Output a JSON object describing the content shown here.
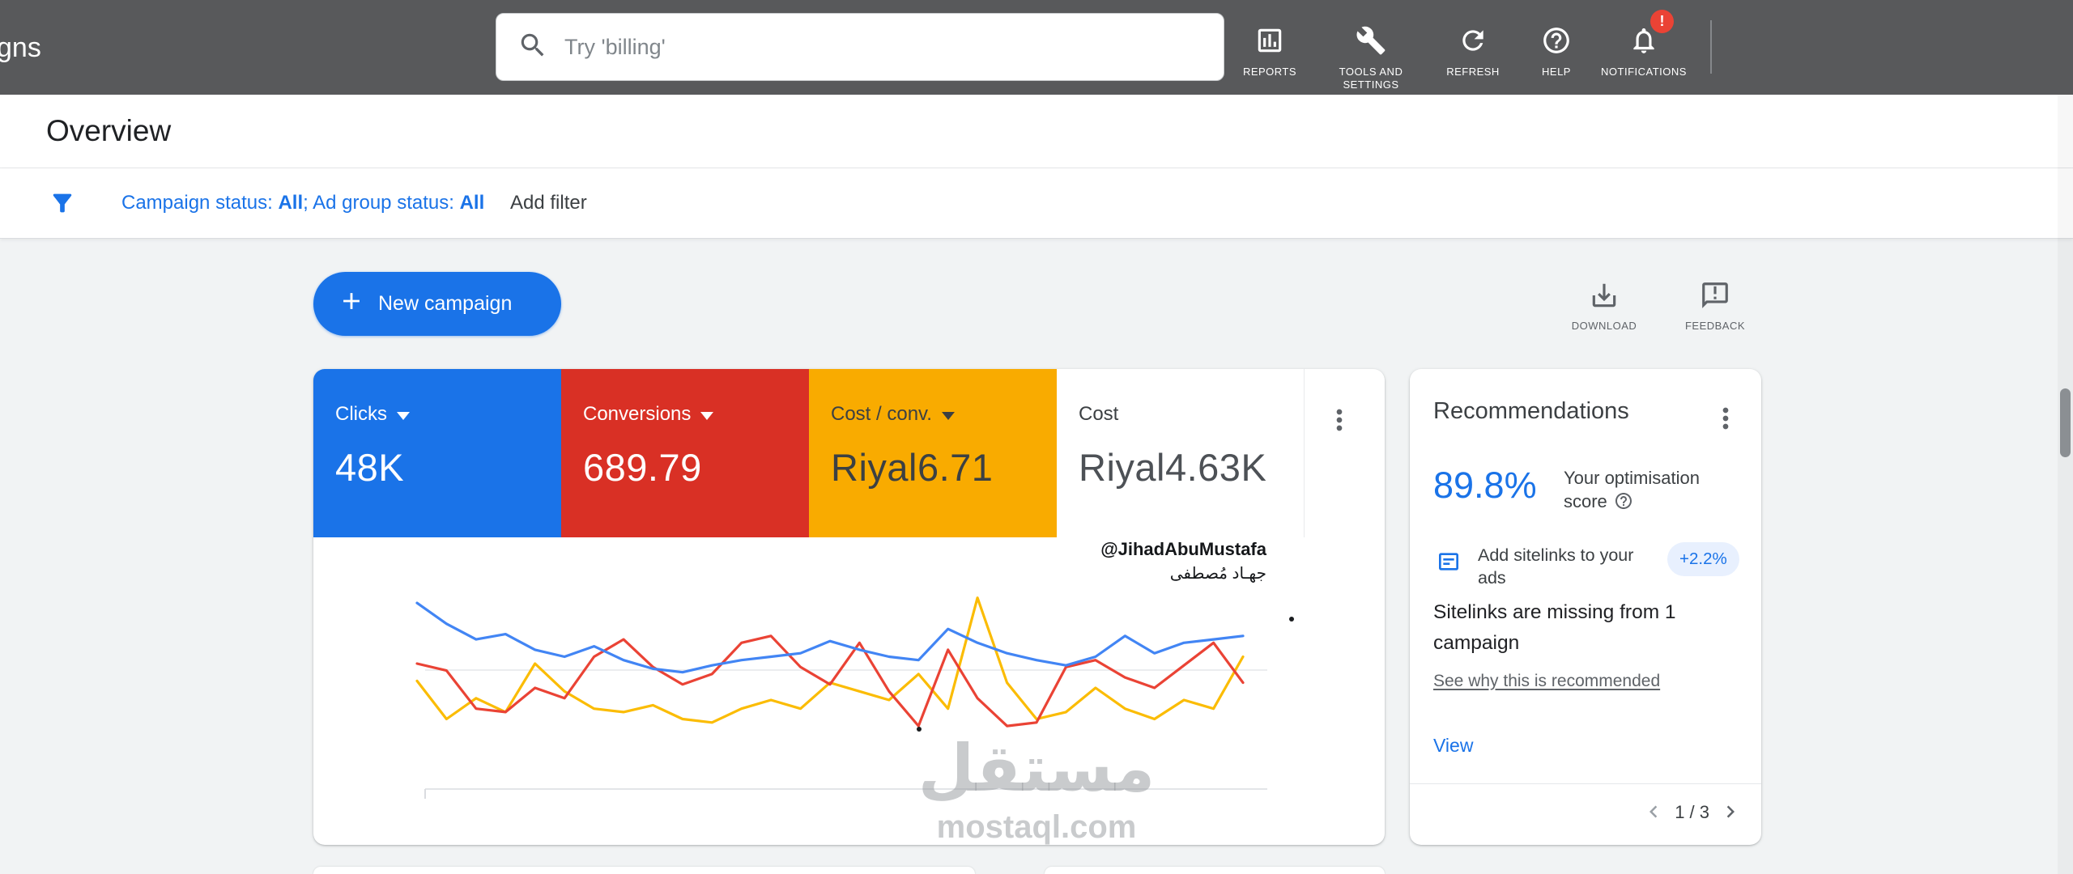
{
  "colors": {
    "accent_blue": "#1a73e8",
    "tile_blue": "#1a73e8",
    "tile_red": "#d93025",
    "tile_yellow": "#f9ab00",
    "badge_red": "#ea4335",
    "uplift_pill_bg": "#e8f0fe",
    "header_bg": "#58595b"
  },
  "header": {
    "clipped_nav_text": "gns",
    "search_placeholder": "Try 'billing'",
    "nav_items": [
      {
        "label": "REPORTS"
      },
      {
        "label": "TOOLS AND SETTINGS"
      },
      {
        "label": "REFRESH"
      },
      {
        "label": "HELP"
      },
      {
        "label": "NOTIFICATIONS",
        "badge": "!"
      }
    ]
  },
  "page": {
    "title": "Overview"
  },
  "filter_bar": {
    "campaign_status_prefix": "Campaign status: ",
    "campaign_status_value": "All",
    "adgroup_status_prefix": "; Ad group status: ",
    "adgroup_status_value": "All",
    "add_filter_label": "Add filter"
  },
  "actions": {
    "new_campaign_label": "New campaign",
    "download_label": "DOWNLOAD",
    "feedback_label": "FEEDBACK"
  },
  "metrics": {
    "tiles": [
      {
        "label": "Clicks",
        "value": "48K",
        "bg": "#1a73e8",
        "fg": "#ffffff",
        "has_dropdown": true
      },
      {
        "label": "Conversions",
        "value": "689.79",
        "bg": "#d93025",
        "fg": "#ffffff",
        "has_dropdown": true
      },
      {
        "label": "Cost / conv.",
        "value": "Riyal6.71",
        "bg": "#f9ab00",
        "fg": "#3c4043",
        "has_dropdown": true
      },
      {
        "label": "Cost",
        "value": "Riyal4.63K",
        "bg": "#ffffff",
        "fg": "#3c4043",
        "has_dropdown": false
      }
    ]
  },
  "chart_data": {
    "type": "line",
    "title": "Overview performance trend (no axis labels shown)",
    "x_count": 29,
    "ylim": [
      0,
      100
    ],
    "values_unit": "relative",
    "grid": "single horizontal gridline + baseline, no tick labels",
    "legend_position": "none (colors match metric tiles)",
    "series": [
      {
        "name": "Clicks",
        "color": "#4285f4",
        "values": [
          92,
          80,
          71,
          74,
          65,
          61,
          67,
          59,
          54,
          52,
          56,
          59,
          61,
          63,
          70,
          65,
          61,
          59,
          77,
          69,
          63,
          59,
          56,
          61,
          73,
          63,
          69,
          71,
          73
        ]
      },
      {
        "name": "Conversions",
        "color": "#ea4335",
        "values": [
          57,
          53,
          31,
          29,
          43,
          37,
          61,
          71,
          55,
          45,
          51,
          69,
          73,
          55,
          45,
          69,
          41,
          21,
          65,
          37,
          21,
          23,
          55,
          59,
          49,
          43,
          56,
          69,
          46
        ]
      },
      {
        "name": "Cost / conv.",
        "color": "#fbbc04",
        "values": [
          47,
          25,
          37,
          29,
          57,
          41,
          31,
          29,
          33,
          25,
          23,
          31,
          36,
          31,
          46,
          41,
          36,
          51,
          31,
          95,
          46,
          25,
          29,
          43,
          31,
          25,
          36,
          31,
          61
        ]
      }
    ]
  },
  "recommendations": {
    "title": "Recommendations",
    "score_value": "89.8%",
    "score_label": "Your optimisation score",
    "item": {
      "title": "Add sitelinks to your ads",
      "uplift": "+2.2%",
      "description": "Sitelinks are missing from 1 campaign",
      "why_link": "See why this is recommended",
      "action_label": "View"
    },
    "pagination": "1 / 3"
  },
  "watermarks": {
    "handle": "@JihadAbuMustafa",
    "name_arabic": "جهـاد مُصطفى",
    "brand_arabic": "مستقل",
    "brand_domain": "mostaql.com"
  }
}
